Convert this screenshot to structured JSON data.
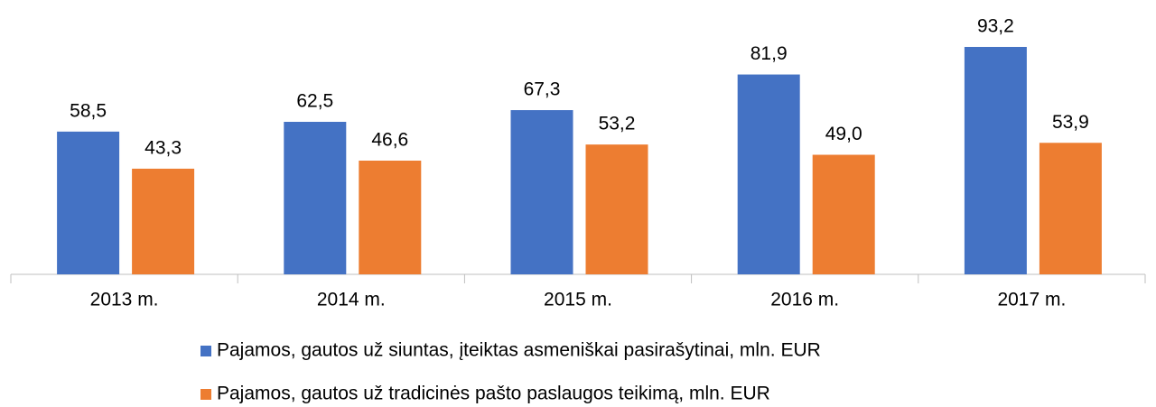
{
  "chart_data": {
    "type": "bar",
    "categories": [
      "2013 m.",
      "2014 m.",
      "2015 m.",
      "2016 m.",
      "2017 m."
    ],
    "series": [
      {
        "name": "Pajamos, gautos už siuntas, įteiktas asmeniškai pasirašytinai, mln. EUR",
        "color": "#4472c4",
        "values": [
          58.5,
          62.5,
          67.3,
          81.9,
          93.2
        ],
        "value_labels": [
          "58,5",
          "62,5",
          "67,3",
          "81,9",
          "93,2"
        ]
      },
      {
        "name": "Pajamos, gautos už tradicinės pašto paslaugos teikimą, mln. EUR",
        "color": "#ed7d31",
        "values": [
          43.3,
          46.6,
          53.2,
          49.0,
          53.9
        ],
        "value_labels": [
          "43,3",
          "46,6",
          "53,2",
          "49,0",
          "53,9"
        ]
      }
    ],
    "legend": "bottom"
  }
}
